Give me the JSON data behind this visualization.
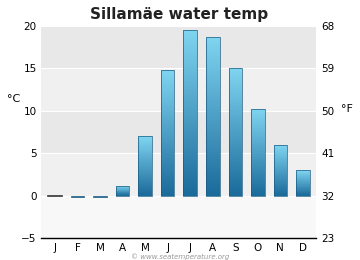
{
  "title": "Sillamäe water temp",
  "months": [
    "J",
    "F",
    "M",
    "A",
    "M",
    "J",
    "J",
    "A",
    "S",
    "O",
    "N",
    "D"
  ],
  "values": [
    0.0,
    -0.2,
    -0.1,
    1.2,
    7.0,
    14.8,
    19.5,
    18.7,
    15.0,
    10.2,
    6.0,
    3.0
  ],
  "ylim_left": [
    -5,
    20
  ],
  "ylim_right": [
    23,
    68
  ],
  "yticks_left": [
    -5,
    0,
    5,
    10,
    15,
    20
  ],
  "yticks_right": [
    23,
    32,
    41,
    50,
    59,
    68
  ],
  "ylabel_left": "°C",
  "ylabel_right": "°F",
  "bg_color": "#ffffff",
  "plot_bg_color": "#f0f0f0",
  "band_color": "#e8e8e8",
  "bar_color_top": "#7fd4f0",
  "bar_color_bottom": "#1a6a9a",
  "bar_edge_color": "#1a5a80",
  "watermark": "© www.seatemperature.org",
  "title_fontsize": 11,
  "tick_fontsize": 7.5,
  "label_fontsize": 8
}
